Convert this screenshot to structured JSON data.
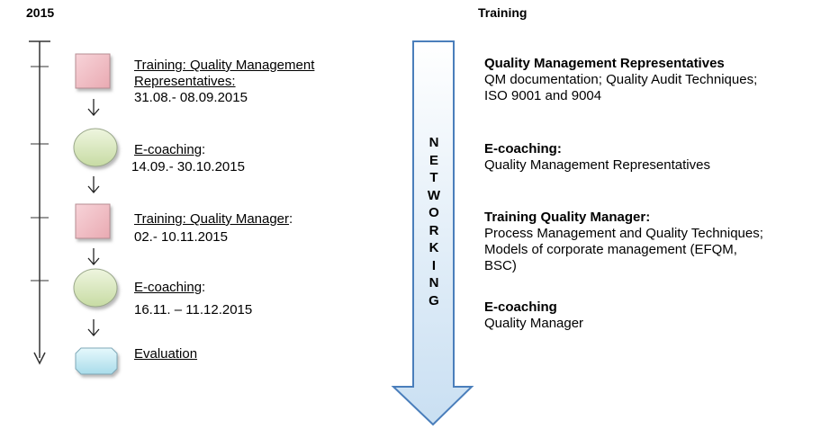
{
  "year": "2015",
  "header": "Training",
  "timeline": [
    {
      "shape": "square",
      "label_underlined": "Training:  Quality Management",
      "label_line2": "Representatives:",
      "label_suffix": "",
      "date": "31.08.- 08.09.2015"
    },
    {
      "shape": "oval",
      "label_underlined": "E-coaching",
      "label_suffix": ":",
      "date": "14.09.- 30.10.2015"
    },
    {
      "shape": "square",
      "label_underlined": "Training:  Quality Manager",
      "label_suffix": ":",
      "date": "02.- 10.11.2015"
    },
    {
      "shape": "oval",
      "label_underlined": "E-coaching",
      "label_suffix": ":",
      "date": "16.11. – 11.12.2015"
    },
    {
      "shape": "rounded-rect",
      "label_underlined": "Evaluation",
      "label_suffix": "",
      "date": ""
    }
  ],
  "arrow_word": "NETWORKING",
  "descriptions": [
    {
      "heading": "Quality Management Representatives",
      "lines": [
        "QM documentation; Quality Audit Techniques;",
        "ISO 9001 and 9004"
      ]
    },
    {
      "heading": "E-coaching:",
      "lines": [
        "Quality Management Representatives"
      ]
    },
    {
      "heading": "Training Quality Manager:",
      "lines": [
        "Process Management and Quality Techniques;",
        "Models of corporate management (EFQM,",
        "BSC)"
      ]
    },
    {
      "heading": "E-coaching",
      "lines": [
        "Quality Manager"
      ]
    }
  ],
  "colors": {
    "square_fill": "#f2c2c8",
    "oval_fill": "#d6e6b8",
    "eval_fill": "#c4ecf6",
    "arrow_fill_top": "#ffffff",
    "arrow_fill_bottom": "#c9dff2",
    "arrow_stroke": "#4a7ebb"
  }
}
